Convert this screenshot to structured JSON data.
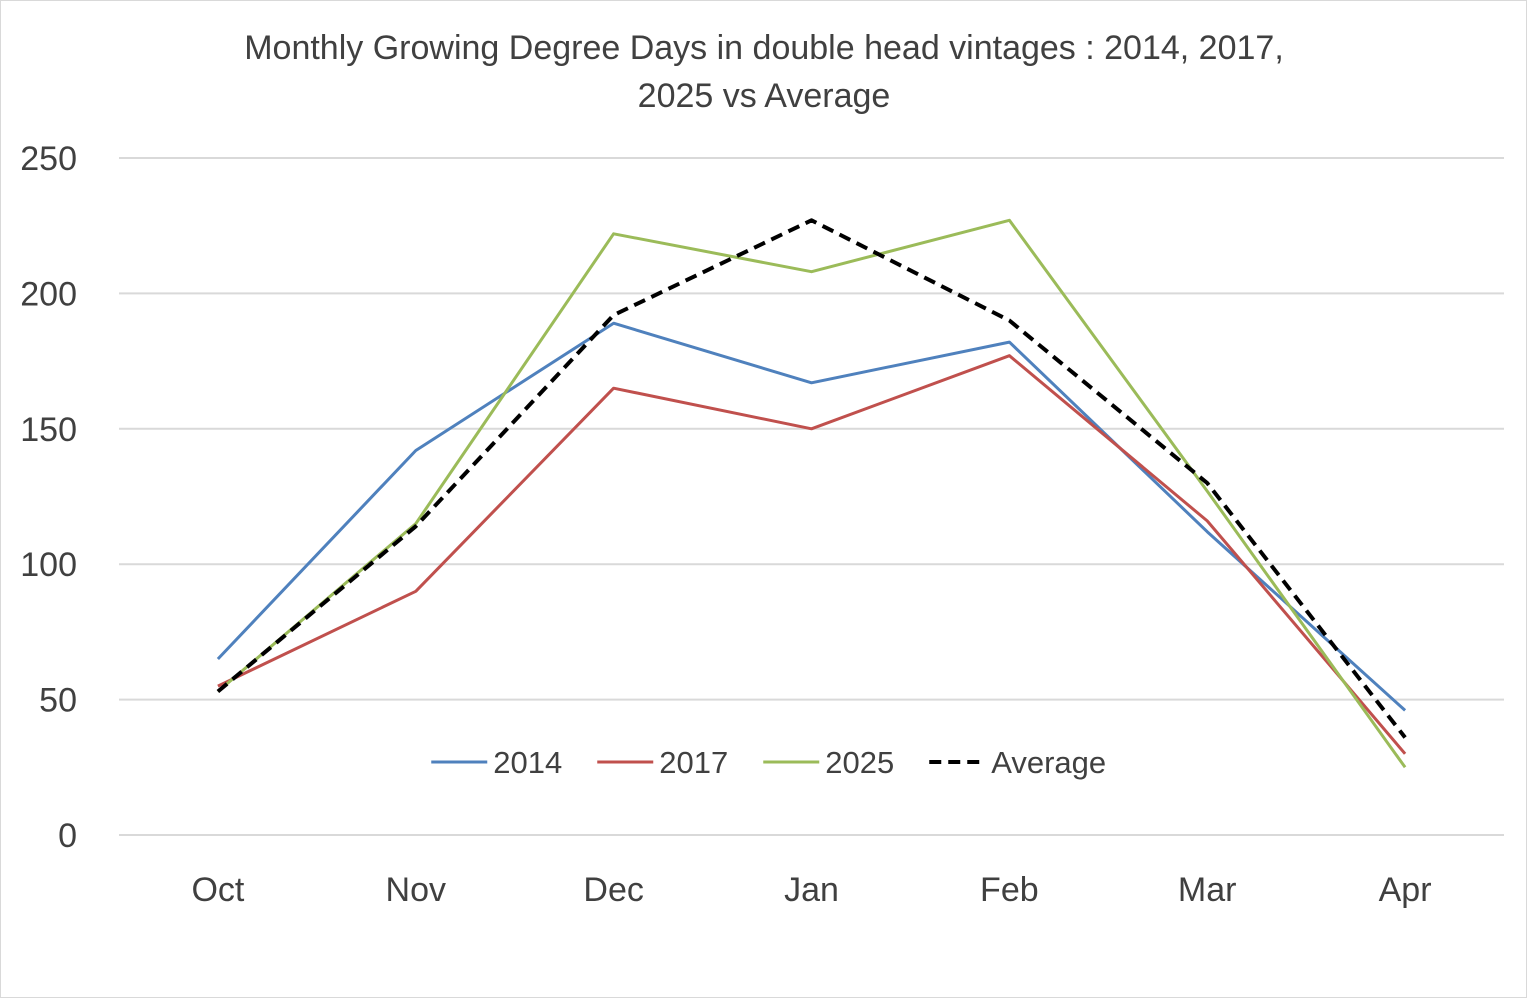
{
  "chart_data": {
    "type": "line",
    "title": "Monthly Growing Degree Days in double head vintages : 2014, 2017, 2025 vs Average",
    "title_lines": [
      "Monthly Growing Degree Days in double head vintages : 2014, 2017,",
      "2025 vs Average"
    ],
    "xlabel": "",
    "ylabel": "",
    "categories": [
      "Oct",
      "Nov",
      "Dec",
      "Jan",
      "Feb",
      "Mar",
      "Apr"
    ],
    "ylim": [
      0,
      250
    ],
    "yticks": [
      "0",
      "50",
      "100",
      "150",
      "200",
      "250"
    ],
    "grid": "horizontal",
    "legend_position": "inside-bottom",
    "series": [
      {
        "name": "2014",
        "values": [
          65,
          142,
          189,
          167,
          182,
          112,
          46
        ],
        "color": "#4f81bd",
        "style": "solid"
      },
      {
        "name": "2017",
        "values": [
          55,
          90,
          165,
          150,
          177,
          116,
          30
        ],
        "color": "#c0504d",
        "style": "solid"
      },
      {
        "name": "2025",
        "values": [
          53,
          115,
          222,
          208,
          227,
          127,
          25
        ],
        "color": "#9bbb59",
        "style": "solid"
      },
      {
        "name": "Average",
        "values": [
          53,
          114,
          192,
          227,
          190,
          130,
          36
        ],
        "color": "#000000",
        "style": "dashed"
      }
    ]
  }
}
